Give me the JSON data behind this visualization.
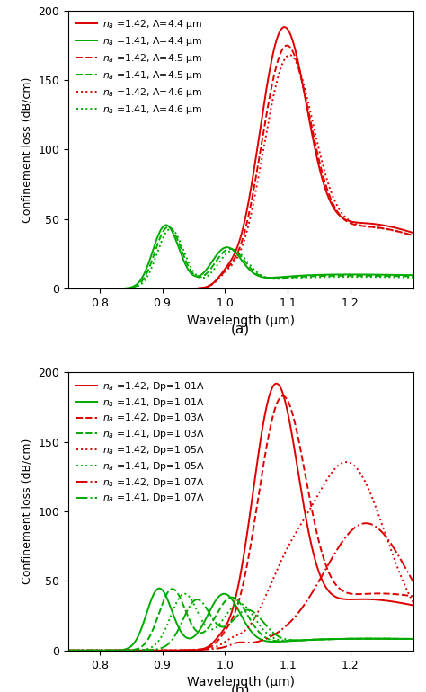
{
  "fig_width": 4.74,
  "fig_height": 7.7,
  "dpi": 100,
  "xlim": [
    0.75,
    1.3
  ],
  "ylim": [
    0,
    200
  ],
  "yticks": [
    0,
    50,
    100,
    150,
    200
  ],
  "xticks": [
    0.8,
    0.9,
    1.0,
    1.1,
    1.2
  ],
  "xlabel": "Wavelength (μm)",
  "ylabel": "Confinement loss (dB/cm)",
  "label_a": "(a)",
  "label_b": "(b)",
  "red_color": "#dd0000",
  "green_color": "#00aa00",
  "linewidth": 1.4,
  "legend_a": [
    {
      "label": "$n_a$ =1.42, Λ=4.4 μm",
      "color": "#dd0000",
      "ls": "-"
    },
    {
      "label": "$n_a$ =1.41, Λ=4.4 μm",
      "color": "#00aa00",
      "ls": "-"
    },
    {
      "label": "$n_a$ =1.42, Λ=4.5 μm",
      "color": "#dd0000",
      "ls": "--"
    },
    {
      "label": "$n_a$ =1.41, Λ=4.5 μm",
      "color": "#00aa00",
      "ls": "--"
    },
    {
      "label": "$n_a$ =1.42, Λ=4.6 μm",
      "color": "#dd0000",
      "ls": ":"
    },
    {
      "label": "$n_a$ =1.41, Λ=4.6 μm",
      "color": "#00aa00",
      "ls": ":"
    }
  ],
  "legend_b": [
    {
      "label": "$n_a$ =1.42, Dp=1.01Λ",
      "color": "#dd0000",
      "ls": "-"
    },
    {
      "label": "$n_a$ =1.41, Dp=1.01Λ",
      "color": "#00aa00",
      "ls": "-"
    },
    {
      "label": "$n_a$ =1.42, Dp=1.03Λ",
      "color": "#dd0000",
      "ls": "--"
    },
    {
      "label": "$n_a$ =1.41, Dp=1.03Λ",
      "color": "#00aa00",
      "ls": "--"
    },
    {
      "label": "$n_a$ =1.42, Dp=1.05Λ",
      "color": "#dd0000",
      "ls": ":"
    },
    {
      "label": "$n_a$ =1.41, Dp=1.05Λ",
      "color": "#00aa00",
      "ls": ":"
    },
    {
      "label": "$n_a$ =1.42, Dp=1.07Λ",
      "color": "#dd0000",
      "ls": "-."
    },
    {
      "label": "$n_a$ =1.41, Dp=1.07Λ",
      "color": "#00aa00",
      "ls": "-."
    }
  ]
}
